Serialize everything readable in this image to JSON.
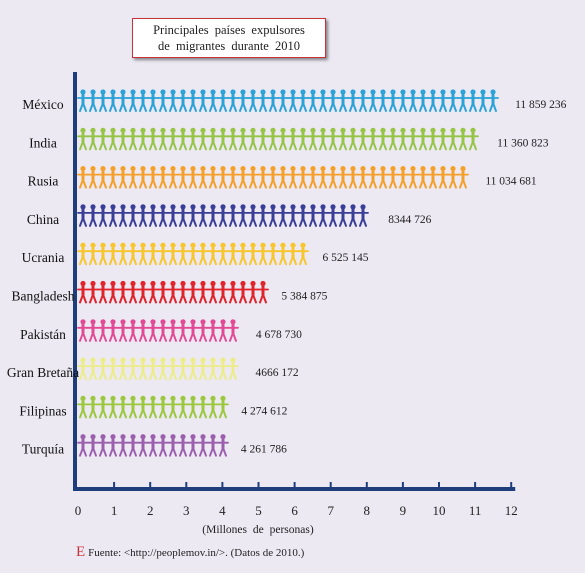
{
  "title": {
    "line1": "Principales países expulsores",
    "line2": "de migrantes durante 2010"
  },
  "chart_data": {
    "type": "bar",
    "orientation": "horizontal",
    "mark": "pictogram (human figures)",
    "categories": [
      "México",
      "India",
      "Rusia",
      "China",
      "Ucrania",
      "Bangladesh",
      "Pakistán",
      "Gran Bretaña",
      "Filipinas",
      "Turquía"
    ],
    "values": [
      11859236,
      11360823,
      11034681,
      8344726,
      6525145,
      5384875,
      4678730,
      4666172,
      4274612,
      4261786
    ],
    "value_labels": [
      "11 859 236",
      "11 360 823",
      "11 034 681",
      "8344 726",
      "6 525 145",
      "5 384 875",
      "4 678 730",
      "4666 172",
      "4 274 612",
      "4 261 786"
    ],
    "colors": [
      "#2aa3d8",
      "#96c546",
      "#f5a02a",
      "#3b3f98",
      "#f7c62d",
      "#e1232a",
      "#e34a95",
      "#ecec8a",
      "#9cc83f",
      "#9b5fae"
    ],
    "xlabel": "(Millones de personas)",
    "xlim": [
      0,
      12
    ],
    "xticks": [
      "0",
      "1",
      "2",
      "3",
      "4",
      "5",
      "6",
      "7",
      "8",
      "9",
      "10",
      "11",
      "12"
    ],
    "axis_color": "#1f3d7a"
  },
  "source": {
    "marker": "E",
    "text": "Fuente: <http://peoplemov.in/>. (Datos de 2010.)"
  }
}
